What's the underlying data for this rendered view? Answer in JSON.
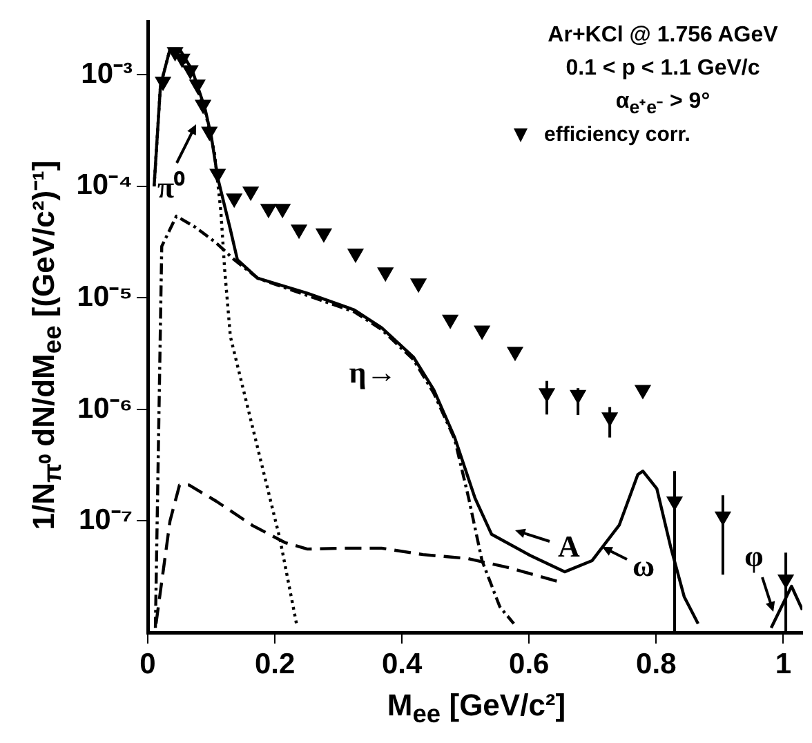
{
  "chart_data": {
    "type": "line",
    "xlabel": "M$_{ee}$ [GeV/c²]",
    "ylabel": "1/N$_{π⁰}$ dN/dM$_{ee}$ [(GeV/c²)⁻¹]",
    "log": "y",
    "xlim": [
      0,
      1.03
    ],
    "ylim": [
      1e-08,
      0.003
    ],
    "xticks": [
      0,
      0.2,
      0.4,
      0.6,
      0.8,
      1
    ],
    "yticks": [
      {
        "value": 1e-07,
        "label": "10⁻⁷"
      },
      {
        "value": 1e-06,
        "label": "10⁻⁶"
      },
      {
        "value": 1e-05,
        "label": "10⁻⁵"
      },
      {
        "value": 0.0001,
        "label": "10⁻⁴"
      },
      {
        "value": 0.001,
        "label": "10⁻³"
      }
    ],
    "grid": false,
    "legend": "top right",
    "annotations": [
      "Ar+KCl @ 1.756 AGeV",
      "0.1 < p < 1.1 GeV/c",
      "α$_{e⁺e⁻}$ > 9°",
      "π⁰",
      "η→",
      "A",
      "ω",
      "φ"
    ],
    "series": [
      {
        "color": "#000000",
        "line_style": "solid",
        "x": [
          0.01,
          0.02,
          0.035,
          0.05,
          0.07,
          0.09,
          0.1,
          0.11,
          0.13,
          0.141,
          0.173,
          0.251,
          0.325,
          0.368,
          0.418,
          0.45,
          0.483,
          0.515,
          0.541,
          0.602,
          0.656,
          0.699,
          0.742,
          0.771,
          0.779,
          0.801,
          0.823,
          0.844,
          0.866,
          0.9,
          0.981,
          1.013,
          1.03
        ],
        "values": [
          0.0001,
          0.0008,
          0.0017,
          0.0017,
          0.0011,
          0.0005,
          0.00028,
          0.00012,
          4.1e-05,
          2.2e-05,
          1.5e-05,
          1.1e-05,
          7.8e-06,
          5.4e-06,
          2.95e-06,
          1.5e-06,
          5.6e-07,
          1.6e-07,
          7.6e-08,
          4.9e-08,
          3.5e-08,
          4.4e-08,
          9.2e-08,
          2.6e-07,
          2.8e-07,
          1.95e-07,
          5.8e-08,
          2.1e-08,
          1.2e-08,
          null,
          1.1e-08,
          2.6e-08,
          1.6e-08
        ]
      },
      {
        "color": "#000000",
        "line_style": "dotted",
        "x": [
          0.01,
          0.02,
          0.035,
          0.05,
          0.07,
          0.09,
          0.105,
          0.115,
          0.121,
          0.13,
          0.173,
          0.208,
          0.234
        ],
        "values": [
          0.0001,
          0.0008,
          0.0017,
          0.0016,
          0.001,
          0.00048,
          0.0002,
          6e-05,
          1.8e-05,
          4.5e-06,
          4.5e-07,
          6.9e-08,
          1.2e-08
        ]
      },
      {
        "color": "#000000",
        "line_style": "dashdot",
        "x": [
          0.012,
          0.022,
          0.045,
          0.075,
          0.108,
          0.136,
          0.173,
          0.251,
          0.325,
          0.368,
          0.418,
          0.45,
          0.483,
          0.505,
          0.526,
          0.554,
          0.576
        ],
        "values": [
          1.1e-08,
          2.9e-05,
          5.4e-05,
          4.3e-05,
          3.1e-05,
          2.2e-05,
          1.5e-05,
          1.05e-05,
          7.5e-06,
          5.2e-06,
          2.8e-06,
          1.4e-06,
          5.4e-07,
          1.6e-07,
          4.4e-08,
          1.7e-08,
          1.2e-08
        ]
      },
      {
        "color": "#000000",
        "line_style": "dashed",
        "x": [
          0.013,
          0.035,
          0.05,
          0.065,
          0.108,
          0.165,
          0.216,
          0.251,
          0.31,
          0.368,
          0.433,
          0.504,
          0.569,
          0.652
        ],
        "values": [
          1.2e-08,
          1e-07,
          2.1e-07,
          2.1e-07,
          1.5e-07,
          9.1e-08,
          6.4e-08,
          5.6e-08,
          5.7e-08,
          5.7e-08,
          5e-08,
          4.6e-08,
          3.8e-08,
          2.8e-08
        ]
      },
      {
        "type": "scatter",
        "name": "efficiency corr.",
        "color": "#000000",
        "marker": "triangle",
        "x": [
          0.024,
          0.043,
          0.054,
          0.067,
          0.078,
          0.087,
          0.097,
          0.11,
          0.136,
          0.162,
          0.19,
          0.212,
          0.238,
          0.277,
          0.327,
          0.374,
          0.426,
          0.476,
          0.526,
          0.578,
          0.628,
          0.677,
          0.727,
          0.779,
          0.829,
          0.905,
          1.004
        ],
        "values": [
          0.00087,
          0.0016,
          0.0014,
          0.0011,
          0.00082,
          0.00054,
          0.00031,
          0.00013,
          7.8e-05,
          9e-05,
          6.3e-05,
          6.3e-05,
          4.1e-05,
          3.8e-05,
          2.5e-05,
          1.7e-05,
          1.35e-05,
          6.4e-06,
          5.1e-06,
          3.3e-06,
          1.4e-06,
          1.35e-06,
          8.5e-07,
          1.5e-06,
          1.5e-07,
          1.1e-07,
          3e-08
        ],
        "errors": [
          null,
          null,
          null,
          null,
          null,
          null,
          null,
          null,
          null,
          null,
          null,
          null,
          null,
          null,
          null,
          null,
          null,
          null,
          null,
          null,
          [
            9e-07,
            1.8e-06
          ],
          [
            8.9e-07,
            1.55e-06
          ],
          [
            5.6e-07,
            1.05e-06
          ],
          null,
          [
            1e-08,
            2.8e-07
          ],
          [
            3.3e-08,
            1.7e-07
          ],
          [
            1e-08,
            5.2e-08
          ]
        ]
      }
    ]
  }
}
